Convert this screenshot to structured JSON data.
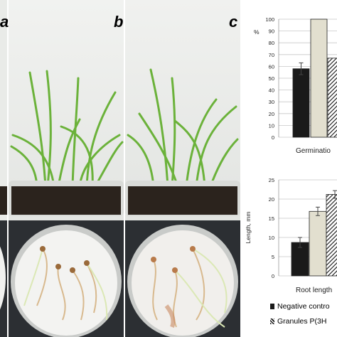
{
  "panel_letters": [
    "a",
    "b",
    "c"
  ],
  "legend": {
    "negative_control": "Negative contro",
    "granules": "Granules P(3H"
  },
  "colors": {
    "negative_control": "#1a1a1a",
    "positive_control": "#e2dfcf",
    "granules": "hatched"
  },
  "chart_data": [
    {
      "type": "bar",
      "title": "",
      "xlabel": "Germinatio",
      "ylabel": "%",
      "ylim": [
        0,
        100
      ],
      "ytick_labels": [
        "0",
        "10",
        "20",
        "30",
        "40",
        "50",
        "60",
        "70",
        "80",
        "90",
        "100"
      ],
      "grid": true,
      "series": [
        {
          "name": "Negative contro",
          "values": [
            58
          ],
          "error": [
            5
          ]
        },
        {
          "values": [
            100
          ],
          "error": [
            0
          ]
        },
        {
          "name": "Granules P(3H",
          "values": [
            67
          ],
          "error": [
            0
          ]
        }
      ]
    },
    {
      "type": "bar",
      "title": "",
      "xlabel": "Root length",
      "ylabel": "Length, mm",
      "ylim": [
        0,
        25
      ],
      "ytick_labels": [
        "0",
        "5",
        "10",
        "15",
        "20",
        "25"
      ],
      "grid": true,
      "series": [
        {
          "name": "Negative contro",
          "values": [
            8.7
          ],
          "error": [
            1.3
          ]
        },
        {
          "values": [
            16.8
          ],
          "error": [
            1.1
          ]
        },
        {
          "name": "Granules P(3H",
          "values": [
            21.2
          ],
          "error": [
            1.0
          ]
        }
      ]
    }
  ]
}
